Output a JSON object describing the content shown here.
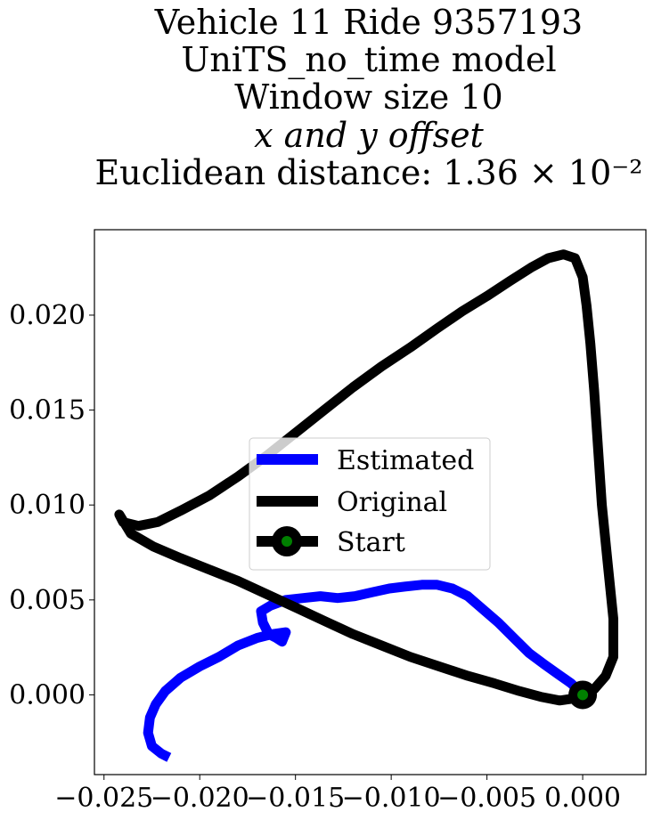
{
  "chart_data": {
    "type": "line",
    "title_lines": [
      "Vehicle 11 Ride 9357193",
      "UniTS_no_time model",
      "Window size 10",
      "x and y offset",
      "Euclidean distance: 1.36 × 10⁻²"
    ],
    "xlabel": "",
    "ylabel": "",
    "xlim": [
      -0.0255,
      0.0033
    ],
    "ylim": [
      -0.0042,
      0.0245
    ],
    "xticks": [
      -0.025,
      -0.02,
      -0.015,
      -0.01,
      -0.005,
      0.0
    ],
    "xtick_labels": [
      "−0.025",
      "−0.020",
      "−0.015",
      "−0.010",
      "−0.005",
      "0.000"
    ],
    "yticks": [
      0.0,
      0.005,
      0.01,
      0.015,
      0.02
    ],
    "ytick_labels": [
      "0.000",
      "0.005",
      "0.010",
      "0.015",
      "0.020"
    ],
    "grid": false,
    "legend_position": "center",
    "legend": [
      "Estimated",
      "Original",
      "Start"
    ],
    "series": [
      {
        "name": "Estimated",
        "color": "#0000ff",
        "x": [
          0.0,
          -0.0006,
          -0.0013,
          -0.002,
          -0.0028,
          -0.0036,
          -0.0044,
          -0.0052,
          -0.006,
          -0.0068,
          -0.0076,
          -0.0084,
          -0.0093,
          -0.0101,
          -0.011,
          -0.0119,
          -0.0128,
          -0.0137,
          -0.0146,
          -0.0155,
          -0.0163,
          -0.0168,
          -0.0167,
          -0.0164,
          -0.016,
          -0.0157,
          -0.0155,
          -0.0162,
          -0.017,
          -0.018,
          -0.019,
          -0.02,
          -0.021,
          -0.0218,
          -0.0223,
          -0.0226,
          -0.0227,
          -0.0225,
          -0.022,
          -0.0216
        ],
        "y": [
          0.0,
          0.0006,
          0.0011,
          0.0016,
          0.0022,
          0.003,
          0.0038,
          0.0045,
          0.0052,
          0.0056,
          0.0058,
          0.0058,
          0.0057,
          0.0056,
          0.0054,
          0.0052,
          0.0051,
          0.0052,
          0.0051,
          0.005,
          0.0047,
          0.0044,
          0.0038,
          0.0032,
          0.003,
          0.0028,
          0.0033,
          0.0032,
          0.003,
          0.0026,
          0.002,
          0.0015,
          0.0009,
          0.0002,
          -0.0005,
          -0.0012,
          -0.002,
          -0.0027,
          -0.0031,
          -0.0033
        ]
      },
      {
        "name": "Original",
        "color": "#000000",
        "x": [
          0.0,
          0.0006,
          0.0012,
          0.0016,
          0.0016,
          0.0013,
          0.001,
          0.0008,
          0.0006,
          0.0004,
          0.0002,
          0.0,
          -0.0004,
          -0.001,
          -0.0018,
          -0.0027,
          -0.0038,
          -0.005,
          -0.0063,
          -0.0076,
          -0.009,
          -0.0105,
          -0.012,
          -0.0135,
          -0.015,
          -0.0165,
          -0.018,
          -0.0195,
          -0.021,
          -0.0222,
          -0.0232,
          -0.024,
          -0.0242,
          -0.0236,
          -0.0224,
          -0.021,
          -0.0195,
          -0.018,
          -0.0165,
          -0.015,
          -0.0135,
          -0.012,
          -0.0105,
          -0.009,
          -0.0075,
          -0.006,
          -0.0046,
          -0.0033,
          -0.0022,
          -0.0012,
          -0.0005,
          0.0
        ],
        "y": [
          0.0,
          0.0003,
          0.001,
          0.002,
          0.004,
          0.007,
          0.01,
          0.013,
          0.016,
          0.0185,
          0.0205,
          0.022,
          0.023,
          0.0232,
          0.023,
          0.0225,
          0.0218,
          0.021,
          0.0202,
          0.0193,
          0.0183,
          0.0173,
          0.0162,
          0.015,
          0.0138,
          0.0126,
          0.0115,
          0.0105,
          0.0097,
          0.0091,
          0.0089,
          0.0091,
          0.0095,
          0.0085,
          0.0078,
          0.0072,
          0.0066,
          0.006,
          0.0053,
          0.0046,
          0.0039,
          0.0032,
          0.0026,
          0.002,
          0.0015,
          0.001,
          0.0006,
          0.0002,
          -0.0001,
          -0.0003,
          -0.0002,
          0.0
        ]
      }
    ],
    "start_marker": {
      "name": "Start",
      "x": 0.0,
      "y": 0.0,
      "outer_color": "#000000",
      "inner_color": "#008000"
    }
  }
}
